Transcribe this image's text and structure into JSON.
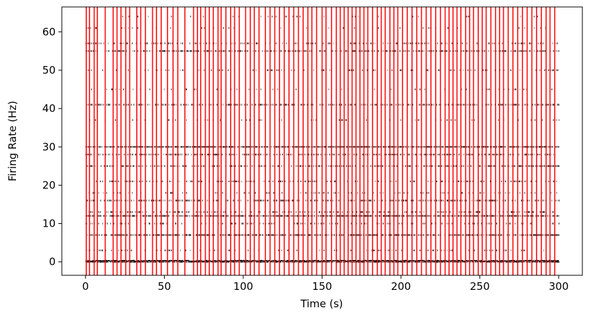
{
  "chart_data": {
    "type": "scatter",
    "title": "",
    "xlabel": "Time (s)",
    "ylabel": "Firing Rate (Hz)",
    "xlim": [
      -15,
      315
    ],
    "ylim": [
      -3.5,
      66.5
    ],
    "xticks": [
      0,
      50,
      100,
      150,
      200,
      250,
      300
    ],
    "yticks": [
      0,
      10,
      20,
      30,
      40,
      50,
      60
    ],
    "grid": false,
    "legend": "none",
    "colors": {
      "raster": "#000000",
      "events": "#ff0000",
      "baseline": "#000000",
      "frame": "#000000"
    },
    "raster_rows": [
      {
        "rate": 0,
        "density": 0.9
      },
      {
        "rate": 3,
        "density": 0.15
      },
      {
        "rate": 7,
        "density": 0.7
      },
      {
        "rate": 10,
        "density": 0.2
      },
      {
        "rate": 12,
        "density": 0.75
      },
      {
        "rate": 13,
        "density": 0.3
      },
      {
        "rate": 16,
        "density": 0.45
      },
      {
        "rate": 18,
        "density": 0.15
      },
      {
        "rate": 21,
        "density": 0.3
      },
      {
        "rate": 25,
        "density": 0.45
      },
      {
        "rate": 28,
        "density": 0.5
      },
      {
        "rate": 30,
        "density": 0.85
      },
      {
        "rate": 37,
        "density": 0.1
      },
      {
        "rate": 41,
        "density": 0.5
      },
      {
        "rate": 45,
        "density": 0.08
      },
      {
        "rate": 50,
        "density": 0.15
      },
      {
        "rate": 55,
        "density": 0.5
      },
      {
        "rate": 57,
        "density": 0.3
      },
      {
        "rate": 61,
        "density": 0.08
      },
      {
        "rate": 64,
        "density": 0.06
      }
    ],
    "event_times": [
      0.5,
      2.5,
      5.5,
      7.5,
      12.5,
      17.5,
      20,
      22.5,
      25.5,
      28,
      32.5,
      35,
      38,
      42.5,
      45,
      48,
      52,
      55.5,
      58.5,
      63,
      68.5,
      71,
      73,
      76,
      78.5,
      81,
      84,
      86,
      89,
      92,
      94.5,
      97.5,
      101.5,
      104.5,
      107,
      110,
      114,
      117,
      120,
      123,
      126,
      129,
      132,
      135,
      138,
      141,
      143.5,
      146.5,
      150,
      152.5,
      156,
      159,
      161.5,
      164,
      166.5,
      169,
      171.5,
      174,
      176.5,
      179,
      182,
      185,
      187.5,
      190,
      193,
      195.5,
      198,
      201,
      204,
      207,
      210,
      213,
      216,
      219,
      222,
      225,
      228,
      230.5,
      233,
      235.5,
      238,
      241,
      243.5,
      246,
      249,
      251.5,
      254,
      257,
      260,
      262.5,
      265,
      268,
      271,
      274,
      277,
      280,
      283,
      286,
      289,
      292,
      294.5,
      297.5
    ]
  }
}
